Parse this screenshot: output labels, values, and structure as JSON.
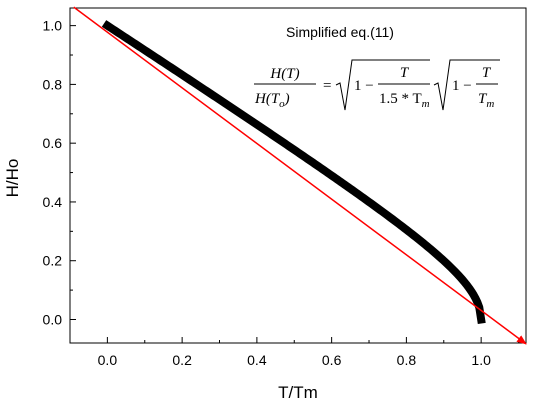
{
  "chart_data": {
    "type": "line",
    "xlabel": "T/Tm",
    "ylabel": "H/Ho",
    "xlim": [
      -0.1,
      1.12
    ],
    "ylim": [
      -0.08,
      1.06
    ],
    "x_ticks": [
      "0.0",
      "0.2",
      "0.4",
      "0.6",
      "0.8",
      "1.0"
    ],
    "y_ticks": [
      "0.0",
      "0.2",
      "0.4",
      "0.6",
      "0.8",
      "1.0"
    ],
    "grid": false,
    "annotation": {
      "title": "Simplified eq.(11)",
      "equation_lhs_num": "H(T)",
      "equation_lhs_den": "H(T",
      "equation_lhs_den_sub": "o",
      "equation_lhs_den_close": ")",
      "equals": "=",
      "one_minus": "1 −",
      "term1_num": "T",
      "term1_den": "1.5 * T",
      "term1_den_sub": "m",
      "term2_num": "T",
      "term2_den": "T",
      "term2_den_sub": "m"
    },
    "series": [
      {
        "formula": "sqrt(1 - x/1.5) * sqrt(1 - x)",
        "color": "#000000",
        "style": "thick-line",
        "x": [
          0.0,
          0.1,
          0.2,
          0.3,
          0.4,
          0.5,
          0.6,
          0.7,
          0.8,
          0.85,
          0.9,
          0.95,
          0.98,
          1.0
        ],
        "y": [
          1.0,
          0.917,
          0.833,
          0.748,
          0.663,
          0.577,
          0.49,
          0.401,
          0.307,
          0.256,
          0.2,
          0.135,
          0.083,
          0.0
        ]
      },
      {
        "color": "#ff0000",
        "style": "line-arrow",
        "x": [
          -0.09,
          1.12
        ],
        "y": [
          1.063,
          -0.083
        ]
      }
    ]
  }
}
